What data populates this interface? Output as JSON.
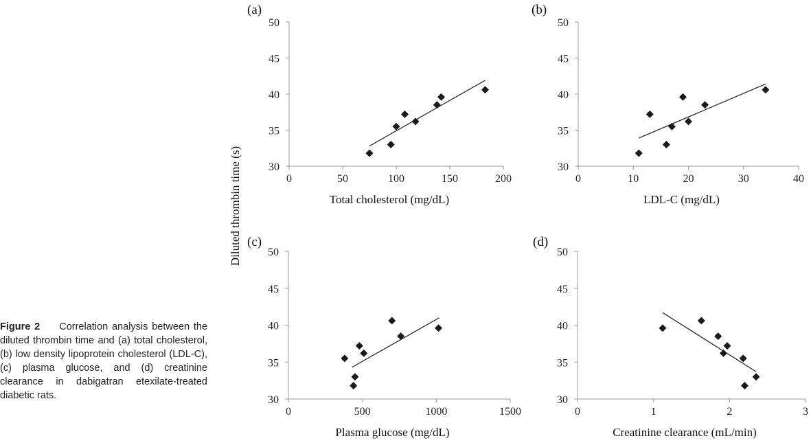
{
  "figure": {
    "label": "Figure 2",
    "caption": "Correlation analysis between the diluted thrombin time and (a) total cholesterol, (b) low density lipoprotein cholesterol (LDL-C), (c) plasma glucose, and (d) creatinine clearance in dabigatran etexilate-treated diabetic rats.",
    "shared_ylabel": "Diluted thrombin time (s)",
    "colors": {
      "marker": "#1a1a1a",
      "axis": "#999999",
      "trend": "#1a1a1a"
    }
  },
  "chart_data": [
    {
      "type": "scatter",
      "panel": "(a)",
      "xlabel": "Total cholesterol (mg/dL)",
      "ylabel": "Diluted thrombin time (s)",
      "xlim": [
        0,
        200
      ],
      "ylim": [
        30,
        50
      ],
      "xticks": [
        0,
        50,
        100,
        150,
        200
      ],
      "yticks": [
        30,
        35,
        40,
        45,
        50
      ],
      "points": [
        [
          75,
          31.8
        ],
        [
          95,
          33.0
        ],
        [
          100,
          35.5
        ],
        [
          108,
          37.2
        ],
        [
          118,
          36.2
        ],
        [
          138,
          38.5
        ],
        [
          142,
          39.6
        ],
        [
          183,
          40.6
        ]
      ],
      "trendline": [
        [
          75,
          32.8
        ],
        [
          183,
          41.9
        ]
      ]
    },
    {
      "type": "scatter",
      "panel": "(b)",
      "xlabel": "LDL-C (mg/dL)",
      "ylabel": "Diluted thrombin time (s)",
      "xlim": [
        0,
        40
      ],
      "ylim": [
        30,
        50
      ],
      "xticks": [
        0,
        10,
        20,
        30,
        40
      ],
      "yticks": [
        30,
        35,
        40,
        45,
        50
      ],
      "points": [
        [
          11,
          31.8
        ],
        [
          13,
          37.2
        ],
        [
          16,
          33.0
        ],
        [
          17,
          35.5
        ],
        [
          19,
          39.6
        ],
        [
          20,
          36.2
        ],
        [
          23,
          38.5
        ],
        [
          34,
          40.6
        ]
      ],
      "trendline": [
        [
          11,
          33.9
        ],
        [
          34,
          41.4
        ]
      ]
    },
    {
      "type": "scatter",
      "panel": "(c)",
      "xlabel": "Plasma glucose (mg/dL)",
      "ylabel": "Diluted thrombin time (s)",
      "xlim": [
        0,
        1500
      ],
      "ylim": [
        30,
        50
      ],
      "xticks": [
        0,
        500,
        1000,
        1500
      ],
      "yticks": [
        30,
        35,
        40,
        45,
        50
      ],
      "points": [
        [
          380,
          35.5
        ],
        [
          440,
          31.8
        ],
        [
          450,
          33.0
        ],
        [
          480,
          37.2
        ],
        [
          510,
          36.2
        ],
        [
          700,
          40.6
        ],
        [
          760,
          38.5
        ],
        [
          1015,
          39.6
        ]
      ],
      "trendline": [
        [
          430,
          34.3
        ],
        [
          1020,
          41.0
        ]
      ]
    },
    {
      "type": "scatter",
      "panel": "(d)",
      "xlabel": "Creatinine clearance (mL/min)",
      "ylabel": "Diluted thrombin time (s)",
      "xlim": [
        0,
        3
      ],
      "ylim": [
        30,
        50
      ],
      "xticks": [
        0,
        1,
        2,
        3
      ],
      "yticks": [
        30,
        35,
        40,
        45,
        50
      ],
      "points": [
        [
          1.12,
          39.6
        ],
        [
          1.63,
          40.6
        ],
        [
          1.85,
          38.5
        ],
        [
          1.92,
          36.2
        ],
        [
          1.97,
          37.2
        ],
        [
          2.18,
          35.5
        ],
        [
          2.2,
          31.8
        ],
        [
          2.35,
          33.0
        ]
      ],
      "trendline": [
        [
          1.12,
          41.7
        ],
        [
          2.35,
          33.7
        ]
      ]
    }
  ]
}
